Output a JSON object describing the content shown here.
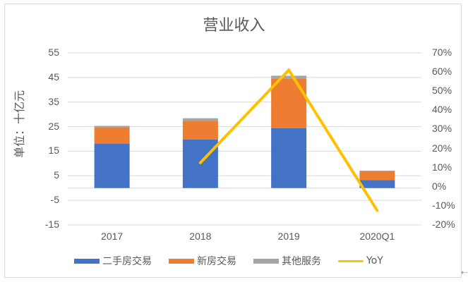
{
  "chart_data": {
    "type": "bar",
    "subtype": "stacked bar + line (secondary axis)",
    "title": "营业收入",
    "xlabel": "",
    "ylabel": "单位：十亿元",
    "y2label": "",
    "categories": [
      "2017",
      "2018",
      "2019",
      "2020Q1"
    ],
    "series": [
      {
        "name": "二手房交易",
        "type": "bar",
        "axis": "left",
        "color": "#4472c4",
        "values": [
          18.1,
          19.8,
          24.4,
          3.2
        ]
      },
      {
        "name": "新房交易",
        "type": "bar",
        "axis": "left",
        "color": "#ed7d31",
        "values": [
          6.6,
          7.5,
          20.1,
          3.7
        ]
      },
      {
        "name": "其他服务",
        "type": "bar",
        "axis": "left",
        "color": "#a5a5a5",
        "values": [
          0.6,
          1.1,
          1.2,
          0.2
        ]
      },
      {
        "name": "YoY",
        "type": "line",
        "axis": "right",
        "color": "#ffc000",
        "values": [
          null,
          0.125,
          0.61,
          -0.125
        ]
      }
    ],
    "ylim": [
      -15,
      55
    ],
    "yticks": [
      "55",
      "45",
      "35",
      "25",
      "15",
      "5",
      "-5",
      "-15"
    ],
    "y2lim": [
      -0.2,
      0.7
    ],
    "y2ticks": [
      "70%",
      "60%",
      "50%",
      "40%",
      "30%",
      "20%",
      "10%",
      "0%",
      "-10%",
      "-20%"
    ],
    "grid": true,
    "legend_position": "bottom"
  },
  "legend": [
    {
      "label": "二手房交易",
      "color": "#4472c4",
      "kind": "bar"
    },
    {
      "label": "新房交易",
      "color": "#ed7d31",
      "kind": "bar"
    },
    {
      "label": "其他服务",
      "color": "#a5a5a5",
      "kind": "bar"
    },
    {
      "label": "YoY",
      "color": "#ffc000",
      "kind": "line"
    }
  ],
  "corner_icon": "arrow-left-icon",
  "corner_glyph": "⇠"
}
